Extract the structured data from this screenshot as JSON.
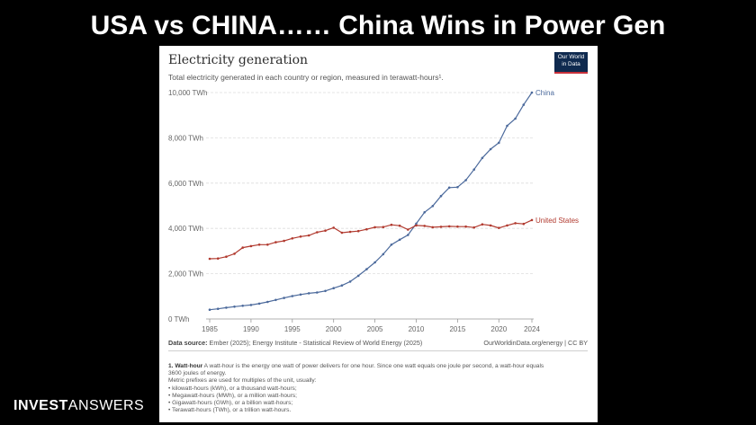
{
  "slide": {
    "title": "USA vs CHINA…… China Wins in Power Gen",
    "brand_bold": "INVEST",
    "brand_light": "ANSWERS"
  },
  "card": {
    "title": "Electricity generation",
    "subtitle": "Total electricity generated in each country or region, measured in terawatt-hours¹.",
    "logo_lines": [
      "Our World",
      "in Data"
    ],
    "source_label": "Data source:",
    "source_text": " Ember (2025); Energy Institute - Statistical Review of World Energy (2025)",
    "source_right": "OurWorldinData.org/energy | CC BY",
    "footnote_title": "1. Watt-hour",
    "footnote_lines": [
      " A watt-hour is the energy one watt of power delivers for one hour. Since one watt equals one joule per second, a watt-hour equals",
      "3600 joules of energy.",
      "Metric prefixes are used for multiples of the unit, usually:",
      "• kilowatt-hours (kWh), or a thousand watt-hours;",
      "• Megawatt-hours (MWh), or a million watt-hours;",
      "• Gigawatt-hours (GWh), or a billion watt-hours;",
      "• Terawatt-hours (TWh), or a trillion watt-hours."
    ]
  },
  "colors": {
    "china": "#4c6a9c",
    "usa": "#b13a2f",
    "grid": "#dddddd",
    "logo_bg": "#0f2a4f"
  },
  "chart_data": {
    "type": "line",
    "title": "Electricity generation",
    "ylabel": "",
    "xlabel": "",
    "x_ticks": [
      1985,
      1990,
      1995,
      2000,
      2005,
      2010,
      2015,
      2020,
      2024
    ],
    "y_ticks": [
      "0 TWh",
      "2,000 TWh",
      "4,000 TWh",
      "6,000 TWh",
      "8,000 TWh",
      "10,000 TWh"
    ],
    "y_tick_values": [
      0,
      2000,
      4000,
      6000,
      8000,
      10000
    ],
    "xlim": [
      1985,
      2024
    ],
    "ylim": [
      0,
      10000
    ],
    "grid": "horizontal dashed",
    "x": [
      1985,
      1986,
      1987,
      1988,
      1989,
      1990,
      1991,
      1992,
      1993,
      1994,
      1995,
      1996,
      1997,
      1998,
      1999,
      2000,
      2001,
      2002,
      2003,
      2004,
      2005,
      2006,
      2007,
      2008,
      2009,
      2010,
      2011,
      2012,
      2013,
      2014,
      2015,
      2016,
      2017,
      2018,
      2019,
      2020,
      2021,
      2022,
      2023,
      2024
    ],
    "series": [
      {
        "name": "China",
        "values": [
          410,
          450,
          500,
          545,
          585,
          620,
          680,
          755,
          840,
          930,
          1010,
          1080,
          1135,
          1170,
          1240,
          1360,
          1480,
          1650,
          1910,
          2200,
          2500,
          2860,
          3280,
          3500,
          3710,
          4210,
          4710,
          4990,
          5430,
          5800,
          5820,
          6130,
          6600,
          7110,
          7500,
          7780,
          8530,
          8850,
          9460,
          10000
        ]
      },
      {
        "name": "United States",
        "values": [
          2660,
          2670,
          2750,
          2880,
          3150,
          3220,
          3280,
          3280,
          3390,
          3450,
          3560,
          3640,
          3690,
          3830,
          3900,
          4030,
          3810,
          3850,
          3880,
          3960,
          4050,
          4060,
          4160,
          4120,
          3950,
          4130,
          4110,
          4050,
          4070,
          4090,
          4080,
          4080,
          4040,
          4180,
          4130,
          4020,
          4130,
          4230,
          4200,
          4370
        ]
      }
    ]
  }
}
